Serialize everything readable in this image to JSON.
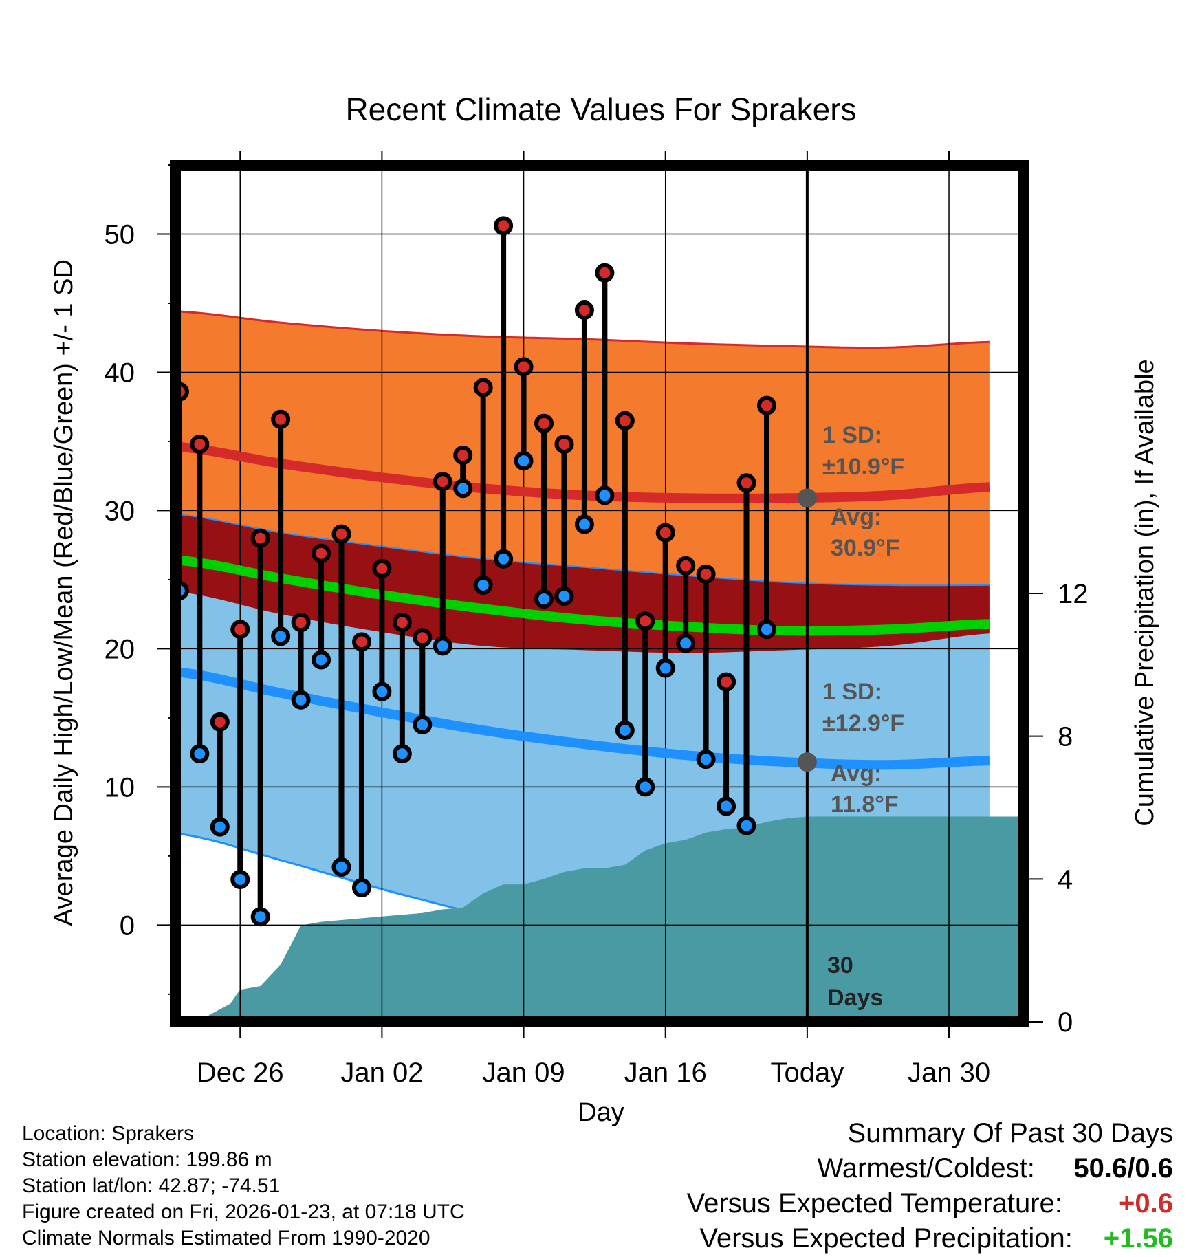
{
  "chart_data": {
    "type": "climate-range",
    "title": "Recent Climate Values For Sprakers",
    "xlabel": "Day",
    "ylabel_left": "Average Daily High/Low/Mean (Red/Blue/Green) +/- 1 SD",
    "ylabel_right": "Cumulative Precipitation (in), If Available",
    "x_ticks": [
      {
        "day": 3,
        "label": "Dec 26"
      },
      {
        "day": 10,
        "label": "Jan 02"
      },
      {
        "day": 17,
        "label": "Jan 09"
      },
      {
        "day": 24,
        "label": "Jan 16"
      },
      {
        "day": 31,
        "label": "Today"
      },
      {
        "day": 38,
        "label": "Jan 30"
      }
    ],
    "xlim": [
      -0.2,
      41.7
    ],
    "ylim": [
      -7,
      55
    ],
    "y_ticks": [
      "0",
      "10",
      "20",
      "30",
      "40",
      "50"
    ],
    "y2lim": [
      0,
      24
    ],
    "y2_ticks": [
      "0",
      "4",
      "8",
      "12"
    ],
    "normals": {
      "days": [
        0,
        5,
        10,
        15,
        20,
        25,
        30,
        35,
        40
      ],
      "high_avg": [
        34.6,
        33.4,
        32.4,
        31.6,
        31.1,
        30.9,
        30.9,
        31.1,
        31.7
      ],
      "high_sd_upper": [
        44.4,
        43.6,
        43.0,
        42.6,
        42.4,
        42.1,
        41.9,
        41.8,
        42.2
      ],
      "high_sd_lower": [
        29.7,
        28.4,
        27.4,
        26.5,
        25.9,
        25.3,
        24.8,
        24.6,
        24.6
      ],
      "low_avg": [
        18.3,
        16.8,
        15.4,
        14.1,
        13.1,
        12.3,
        11.8,
        11.6,
        11.9
      ],
      "low_sd_upper": [
        24.1,
        22.5,
        21.2,
        20.2,
        19.9,
        19.7,
        19.9,
        20.2,
        21.1
      ],
      "low_sd_lower": [
        6.6,
        4.7,
        2.6,
        0.7,
        -1.2,
        -2.7,
        -3.9,
        -4.5,
        -4.7
      ],
      "mean_avg": [
        26.4,
        25.1,
        23.9,
        22.9,
        22.1,
        21.6,
        21.3,
        21.4,
        21.8
      ]
    },
    "observations": {
      "days": [
        0,
        1,
        2,
        3,
        4,
        5,
        6,
        7,
        8,
        9,
        10,
        11,
        12,
        13,
        14,
        15,
        16,
        17,
        18,
        19,
        20,
        21,
        22,
        23,
        24,
        25,
        26,
        27,
        28,
        29
      ],
      "highs": [
        38.6,
        34.8,
        14.7,
        21.4,
        28.0,
        36.6,
        21.9,
        26.9,
        28.3,
        20.5,
        25.8,
        21.9,
        20.8,
        32.1,
        34.0,
        38.9,
        50.6,
        40.4,
        36.3,
        34.8,
        44.5,
        47.2,
        36.5,
        22.0,
        28.4,
        26.0,
        25.4,
        17.6,
        32.0,
        37.6
      ],
      "lows": [
        24.2,
        12.4,
        7.1,
        3.3,
        0.6,
        20.9,
        16.3,
        19.2,
        4.2,
        2.7,
        16.9,
        12.4,
        14.5,
        20.2,
        31.6,
        24.6,
        26.5,
        33.6,
        23.6,
        23.8,
        29.0,
        31.1,
        14.1,
        10.0,
        18.6,
        20.4,
        12.0,
        8.6,
        7.2,
        21.4
      ]
    },
    "precipitation": {
      "days": [
        1,
        1.5,
        2.5,
        3,
        4,
        5,
        6,
        7,
        8,
        9,
        10,
        11,
        12,
        13,
        14,
        15,
        16,
        17,
        18,
        19,
        20,
        21,
        22,
        23,
        24,
        25,
        26,
        27,
        28,
        29,
        30,
        31,
        41.7
      ],
      "cumulative": [
        0,
        0.2,
        0.5,
        0.9,
        1.0,
        1.6,
        2.7,
        2.8,
        2.85,
        2.9,
        2.95,
        3.0,
        3.05,
        3.15,
        3.2,
        3.6,
        3.85,
        3.85,
        4.0,
        4.2,
        4.3,
        4.3,
        4.4,
        4.8,
        5.0,
        5.1,
        5.3,
        5.4,
        5.45,
        5.6,
        5.7,
        5.75,
        5.75
      ]
    },
    "annotations": {
      "high_sd": "1 SD:",
      "high_sd_value": "±10.9°F",
      "high_avg_label": "Avg:",
      "high_avg_value": "30.9°F",
      "low_sd": "1 SD:",
      "low_sd_value": "±12.9°F",
      "low_avg_label": "Avg:",
      "low_avg_value": "11.8°F",
      "window_line1": "30",
      "window_line2": "Days",
      "today_day": 31,
      "today_high_avg": 30.9,
      "today_low_avg": 11.8
    },
    "colors": {
      "high_band": "#f47a2e",
      "overlap_band": "#961014",
      "low_band": "#82c1e8",
      "high_line": "#d42a2a",
      "low_line": "#1e90ff",
      "mean_line": "#00d000",
      "precip": "#4a9aa4",
      "high_dot": "#d42a2a",
      "low_dot": "#1e90ff",
      "annotation": "#555555"
    }
  },
  "footer": {
    "location": "Location: Sprakers",
    "elevation": "Station elevation: 199.86 m",
    "latlon": "Station lat/lon: 42.87; -74.51",
    "created": "Figure created on Fri, 2026-01-23, at 07:18 UTC",
    "normals": "Climate Normals Estimated From 1990-2020"
  },
  "summary": {
    "title": "Summary Of Past 30 Days",
    "warmest_coldest_label": "Warmest/Coldest:",
    "warmest_coldest_value": "50.6/0.6",
    "temp_label": "Versus Expected Temperature:",
    "temp_value": "+0.6",
    "temp_color": "#d42a2a",
    "precip_label": "Versus Expected Precipitation:",
    "precip_value": "+1.56",
    "precip_color": "#22bb22"
  }
}
